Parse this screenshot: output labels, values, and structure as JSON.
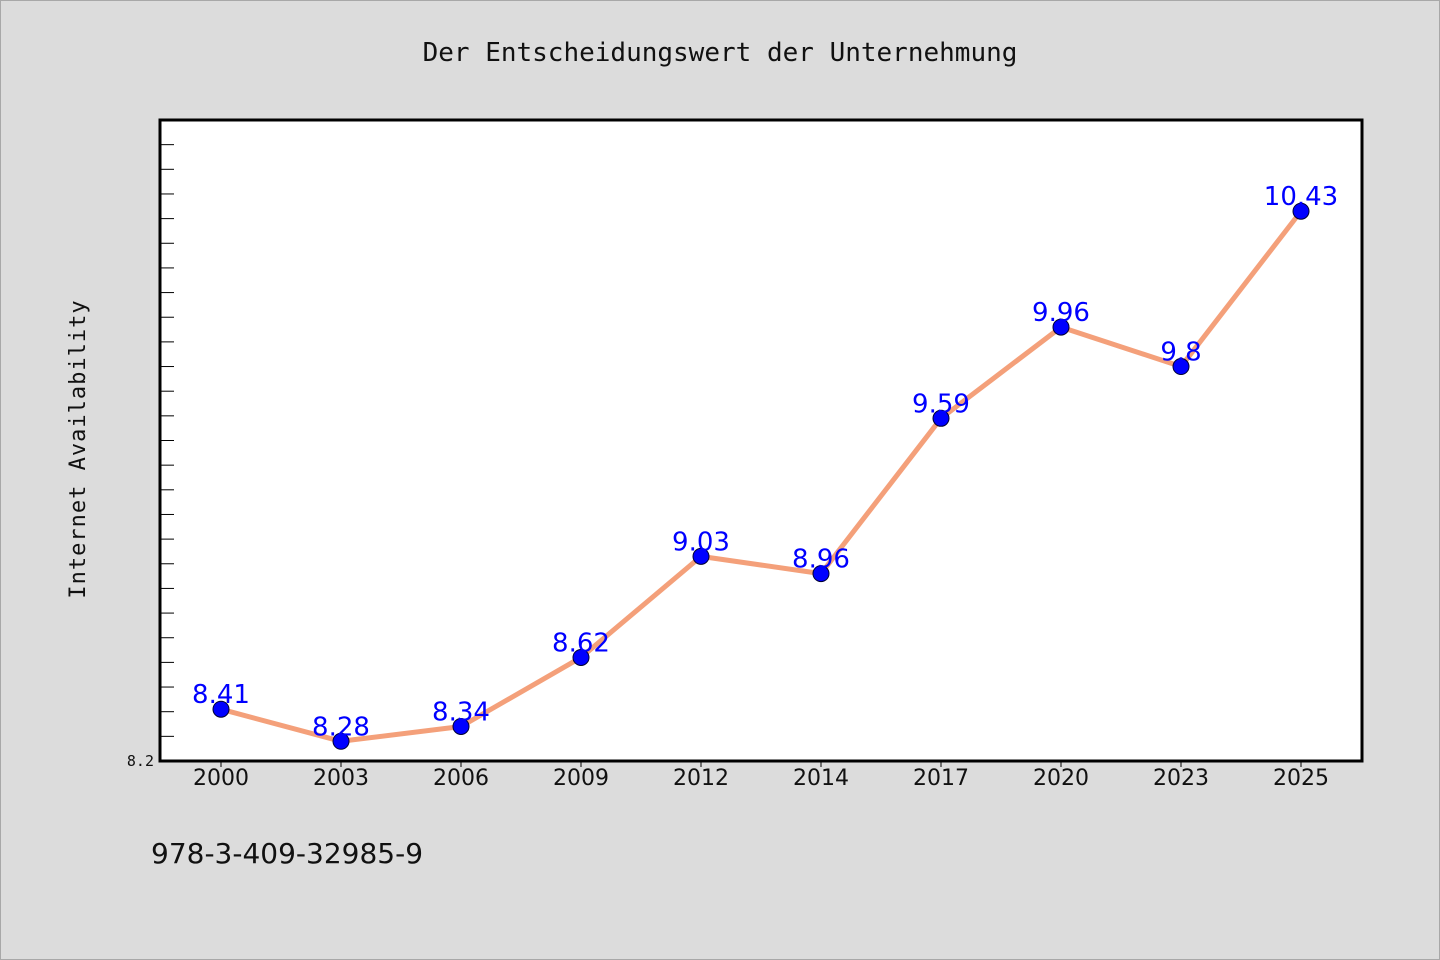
{
  "chart_data": {
    "type": "line",
    "title": "Der Entscheidungswert der Unternehmung",
    "xlabel": "",
    "ylabel": "Internet Availability",
    "categories": [
      "2000",
      "2003",
      "2006",
      "2009",
      "2012",
      "2014",
      "2017",
      "2020",
      "2023",
      "2025"
    ],
    "series": [
      {
        "values": [
          8.41,
          8.28,
          8.34,
          8.62,
          9.03,
          8.96,
          9.59,
          9.96,
          9.8,
          10.43
        ],
        "labels": [
          "8.41",
          "8.28",
          "8.34",
          "8.62",
          "9.03",
          "8.96",
          "9.59",
          "9.96",
          "9.8",
          "10.43"
        ],
        "line_color": "#f4a07a",
        "marker_color": "#0000ff"
      }
    ],
    "ylim": [
      8.2,
      10.8
    ],
    "yticks_labeled": [
      "8.2"
    ],
    "y_minor_tick_step": 0.1,
    "grid": false,
    "legend": "none",
    "footnote": "978-3-409-32985-9"
  },
  "colors": {
    "background": "#dcdcdc",
    "plot_background": "#ffffff",
    "axis": "#000000",
    "line": "#f4a07a",
    "marker": "#0000ff",
    "data_label": "#0000ff"
  }
}
